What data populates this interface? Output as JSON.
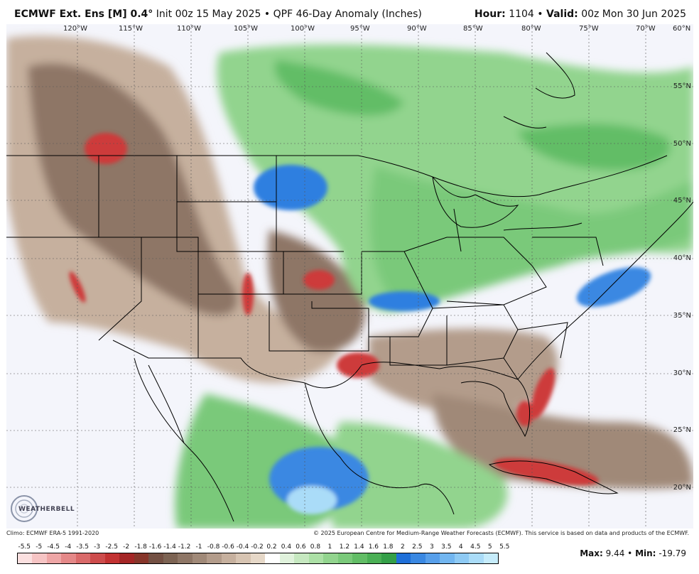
{
  "header": {
    "model": "ECMWF Ext. Ens [M] 0.4",
    "degree": "°",
    "init": "Init 00z 15 May 2025",
    "bullet": "•",
    "product": "QPF 46-Day Anomaly (Inches)",
    "hour_label": "Hour:",
    "hour_value": "1104",
    "valid_label": "Valid:",
    "valid_value": "00z Mon 30 Jun 2025"
  },
  "longitudes": [
    "120°W",
    "115°W",
    "110°W",
    "105°W",
    "100°W",
    "95°W",
    "90°W",
    "85°W",
    "80°W",
    "75°W",
    "70°W",
    "60°N"
  ],
  "latitudes": [
    "55°N",
    "50°N",
    "45°N",
    "40°N",
    "35°N",
    "30°N",
    "25°N",
    "20°N"
  ],
  "footer": {
    "climo": "Climo: ECMWF ERA-5 1991-2020",
    "copyright": "© 2025 European Centre for Medium-Range Weather Forecasts (ECMWF). This service is based on data and products of the ECMWF.",
    "logo": "WEATHERBELL",
    "max_label": "Max:",
    "max_value": "9.44",
    "min_label": "Min:",
    "min_value": "-19.79"
  },
  "legend": {
    "labels": [
      "-5.5",
      "-5",
      "-4.5",
      "-4",
      "-3.5",
      "-3",
      "-2.5",
      "-2",
      "-1.8",
      "-1.6",
      "-1.4",
      "-1.2",
      "-1",
      "-0.8",
      "-0.6",
      "-0.4",
      "-0.2",
      "0.2",
      "0.4",
      "0.6",
      "0.8",
      "1",
      "1.2",
      "1.4",
      "1.6",
      "1.8",
      "2",
      "2.5",
      "3",
      "3.5",
      "4",
      "4.5",
      "5",
      "5.5"
    ],
    "colors": [
      "#fbe0e0",
      "#f6c4c4",
      "#eea6a6",
      "#e48888",
      "#d96a6a",
      "#cd4c4c",
      "#c23232",
      "#a42626",
      "#86352a",
      "#735043",
      "#7c6353",
      "#8e7666",
      "#a08978",
      "#b39c8b",
      "#c6b09e",
      "#d7c4b2",
      "#e6d8c8",
      "#ffffff",
      "#e0f2dc",
      "#c6e8c0",
      "#ace0a6",
      "#92d48e",
      "#7ac97a",
      "#62bd66",
      "#4aaf55",
      "#349f48",
      "#1f6fd8",
      "#3a88e2",
      "#579fea",
      "#72b6f0",
      "#8ecaf4",
      "#aadcf8",
      "#c6ecfb"
    ]
  },
  "colors": {
    "wet": "#6dc276",
    "dry": "#a08978",
    "very_dry": "#cd3a3a",
    "very_wet": "#2f7fe0"
  }
}
